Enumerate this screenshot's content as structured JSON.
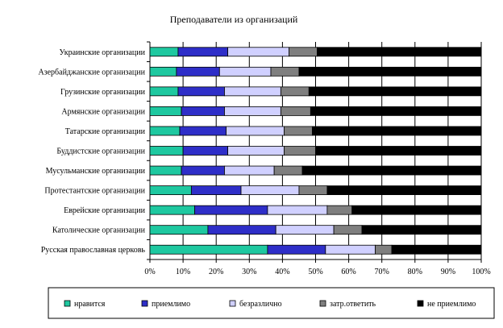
{
  "chart_data": {
    "type": "bar",
    "orientation": "horizontal",
    "stacked": "percent",
    "title": "Преподаватели из организаций",
    "xlabel": "",
    "ylabel": "",
    "xlim": [
      0,
      100
    ],
    "x_ticks": [
      "0%",
      "10%",
      "20%",
      "30%",
      "40%",
      "50%",
      "60%",
      "70%",
      "80%",
      "90%",
      "100%"
    ],
    "grid": "vertical",
    "legend_position": "bottom",
    "categories": [
      "Украинские организации",
      "Азербайджанские организации",
      "Грузинские организации",
      "Армянские организации",
      "Татарские организации",
      "Буддистские организации",
      "Мусульманские организации",
      "Протестантские организации",
      "Еврейские организации",
      "Католические организации",
      "Русская православная церковь"
    ],
    "series": [
      {
        "name": "нравится",
        "color": "#1ec8a0",
        "values": [
          8.5,
          8,
          8.5,
          9.5,
          9,
          10,
          9.5,
          12.5,
          13.5,
          17.5,
          35.5
        ]
      },
      {
        "name": "приемлимо",
        "color": "#2e2ec8",
        "values": [
          15,
          13,
          14,
          13,
          14,
          13.5,
          13,
          15,
          22,
          20.5,
          17.5
        ]
      },
      {
        "name": "безразлично",
        "color": "#d0d0ff",
        "values": [
          18.5,
          15.5,
          17,
          17,
          17.5,
          17,
          15,
          17.5,
          18,
          17.5,
          15
        ]
      },
      {
        "name": "затр.ответить",
        "color": "#7f7f7f",
        "values": [
          8.5,
          8.5,
          8.5,
          9,
          8.5,
          9.5,
          8.5,
          8.5,
          7.5,
          8.5,
          5
        ]
      },
      {
        "name": "не приемлимо",
        "color": "#000000",
        "values": [
          49.5,
          55,
          52,
          51.5,
          51,
          50,
          54,
          46.5,
          39,
          36,
          27
        ]
      }
    ]
  }
}
